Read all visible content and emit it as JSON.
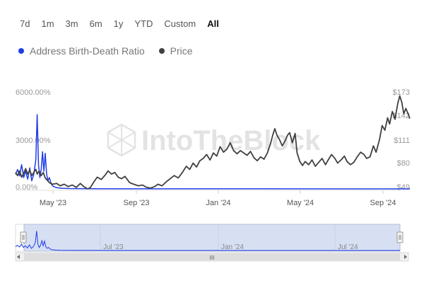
{
  "ranges": {
    "items": [
      "7d",
      "1m",
      "3m",
      "6m",
      "1y",
      "YTD",
      "Custom",
      "All"
    ],
    "active": "All"
  },
  "legend": {
    "items": [
      {
        "label": "Address Birth-Death Ratio",
        "color": "#1f3de6"
      },
      {
        "label": "Price",
        "color": "#404040"
      }
    ]
  },
  "watermark": "IntoTheBlock",
  "chart_data": {
    "type": "line",
    "x_ticks": [
      "May '23",
      "Sep '23",
      "Jan '24",
      "May '24",
      "Sep '24"
    ],
    "y_left_ticks": [
      "0.00%",
      "3000.00%",
      "6000.00%"
    ],
    "y_right_ticks": [
      "$49",
      "$80",
      "$111",
      "$142",
      "$173"
    ],
    "y_left_range": [
      0,
      6000
    ],
    "y_right_range": [
      49,
      173
    ],
    "x_range": [
      "2023-03-01",
      "2024-10-05"
    ],
    "grid": false,
    "legend_position": "top-left",
    "series": [
      {
        "name": "Address Birth-Death Ratio",
        "axis": "left",
        "color": "#1f3de6",
        "points": [
          [
            "2023-03-01",
            900
          ],
          [
            "2023-03-04",
            1200
          ],
          [
            "2023-03-07",
            800
          ],
          [
            "2023-03-10",
            1500
          ],
          [
            "2023-03-13",
            700
          ],
          [
            "2023-03-16",
            1100
          ],
          [
            "2023-03-19",
            600
          ],
          [
            "2023-03-22",
            1300
          ],
          [
            "2023-03-25",
            500
          ],
          [
            "2023-03-28",
            900
          ],
          [
            "2023-03-31",
            1800
          ],
          [
            "2023-04-02",
            4600
          ],
          [
            "2023-04-04",
            1500
          ],
          [
            "2023-04-06",
            700
          ],
          [
            "2023-04-08",
            1200
          ],
          [
            "2023-04-10",
            2300
          ],
          [
            "2023-04-12",
            1100
          ],
          [
            "2023-04-14",
            2200
          ],
          [
            "2023-04-16",
            900
          ],
          [
            "2023-04-18",
            500
          ],
          [
            "2023-04-20",
            700
          ],
          [
            "2023-04-23",
            300
          ],
          [
            "2023-04-26",
            150
          ],
          [
            "2023-05-01",
            80
          ],
          [
            "2023-05-08",
            40
          ],
          [
            "2023-05-20",
            20
          ],
          [
            "2023-06-15",
            10
          ],
          [
            "2023-08-01",
            5
          ],
          [
            "2024-01-01",
            3
          ],
          [
            "2024-10-05",
            2
          ]
        ]
      },
      {
        "name": "Price",
        "axis": "right",
        "color": "#404040",
        "points": [
          [
            "2023-03-01",
            70
          ],
          [
            "2023-03-04",
            66
          ],
          [
            "2023-03-07",
            72
          ],
          [
            "2023-03-10",
            64
          ],
          [
            "2023-03-13",
            69
          ],
          [
            "2023-03-16",
            75
          ],
          [
            "2023-03-19",
            68
          ],
          [
            "2023-03-22",
            73
          ],
          [
            "2023-03-25",
            66
          ],
          [
            "2023-03-28",
            70
          ],
          [
            "2023-03-31",
            74
          ],
          [
            "2023-04-02",
            68
          ],
          [
            "2023-04-05",
            72
          ],
          [
            "2023-04-08",
            66
          ],
          [
            "2023-04-11",
            70
          ],
          [
            "2023-04-14",
            63
          ],
          [
            "2023-04-17",
            60
          ],
          [
            "2023-04-20",
            57
          ],
          [
            "2023-04-25",
            55
          ],
          [
            "2023-05-01",
            56
          ],
          [
            "2023-05-06",
            53
          ],
          [
            "2023-05-12",
            55
          ],
          [
            "2023-05-18",
            52
          ],
          [
            "2023-05-24",
            54
          ],
          [
            "2023-05-30",
            51
          ],
          [
            "2023-06-05",
            56
          ],
          [
            "2023-06-10",
            52
          ],
          [
            "2023-06-16",
            49
          ],
          [
            "2023-06-20",
            51
          ],
          [
            "2023-06-25",
            58
          ],
          [
            "2023-06-30",
            64
          ],
          [
            "2023-07-06",
            61
          ],
          [
            "2023-07-12",
            67
          ],
          [
            "2023-07-16",
            72
          ],
          [
            "2023-07-21",
            68
          ],
          [
            "2023-07-26",
            70
          ],
          [
            "2023-07-31",
            64
          ],
          [
            "2023-08-05",
            62
          ],
          [
            "2023-08-10",
            65
          ],
          [
            "2023-08-17",
            57
          ],
          [
            "2023-08-23",
            55
          ],
          [
            "2023-08-30",
            53
          ],
          [
            "2023-09-05",
            54
          ],
          [
            "2023-09-11",
            51
          ],
          [
            "2023-09-17",
            50
          ],
          [
            "2023-09-23",
            52
          ],
          [
            "2023-09-28",
            55
          ],
          [
            "2023-10-04",
            53
          ],
          [
            "2023-10-10",
            58
          ],
          [
            "2023-10-16",
            62
          ],
          [
            "2023-10-22",
            66
          ],
          [
            "2023-10-28",
            63
          ],
          [
            "2023-11-03",
            70
          ],
          [
            "2023-11-09",
            78
          ],
          [
            "2023-11-14",
            74
          ],
          [
            "2023-11-19",
            82
          ],
          [
            "2023-11-24",
            77
          ],
          [
            "2023-11-29",
            85
          ],
          [
            "2023-12-04",
            88
          ],
          [
            "2023-12-09",
            93
          ],
          [
            "2023-12-14",
            86
          ],
          [
            "2023-12-19",
            95
          ],
          [
            "2023-12-24",
            91
          ],
          [
            "2023-12-29",
            103
          ],
          [
            "2024-01-03",
            96
          ],
          [
            "2024-01-08",
            100
          ],
          [
            "2024-01-13",
            108
          ],
          [
            "2024-01-18",
            98
          ],
          [
            "2024-01-23",
            94
          ],
          [
            "2024-01-28",
            98
          ],
          [
            "2024-02-02",
            95
          ],
          [
            "2024-02-07",
            92
          ],
          [
            "2024-02-12",
            97
          ],
          [
            "2024-02-17",
            89
          ],
          [
            "2024-02-22",
            85
          ],
          [
            "2024-02-27",
            90
          ],
          [
            "2024-03-03",
            87
          ],
          [
            "2024-03-08",
            95
          ],
          [
            "2024-03-13",
            108
          ],
          [
            "2024-03-16",
            118
          ],
          [
            "2024-03-19",
            126
          ],
          [
            "2024-03-22",
            118
          ],
          [
            "2024-03-26",
            112
          ],
          [
            "2024-03-30",
            104
          ],
          [
            "2024-04-03",
            110
          ],
          [
            "2024-04-07",
            118
          ],
          [
            "2024-04-10",
            121
          ],
          [
            "2024-04-14",
            108
          ],
          [
            "2024-04-18",
            120
          ],
          [
            "2024-04-21",
            95
          ],
          [
            "2024-04-25",
            84
          ],
          [
            "2024-04-29",
            79
          ],
          [
            "2024-05-03",
            84
          ],
          [
            "2024-05-08",
            80
          ],
          [
            "2024-05-13",
            86
          ],
          [
            "2024-05-18",
            78
          ],
          [
            "2024-05-23",
            83
          ],
          [
            "2024-05-28",
            88
          ],
          [
            "2024-06-02",
            80
          ],
          [
            "2024-06-06",
            86
          ],
          [
            "2024-06-11",
            93
          ],
          [
            "2024-06-16",
            88
          ],
          [
            "2024-06-20",
            82
          ],
          [
            "2024-06-25",
            86
          ],
          [
            "2024-06-30",
            91
          ],
          [
            "2024-07-04",
            84
          ],
          [
            "2024-07-09",
            80
          ],
          [
            "2024-07-14",
            83
          ],
          [
            "2024-07-19",
            90
          ],
          [
            "2024-07-24",
            96
          ],
          [
            "2024-07-29",
            93
          ],
          [
            "2024-08-02",
            88
          ],
          [
            "2024-08-07",
            90
          ],
          [
            "2024-08-12",
            104
          ],
          [
            "2024-08-16",
            96
          ],
          [
            "2024-08-21",
            112
          ],
          [
            "2024-08-25",
            130
          ],
          [
            "2024-08-29",
            124
          ],
          [
            "2024-09-02",
            140
          ],
          [
            "2024-09-05",
            132
          ],
          [
            "2024-09-09",
            148
          ],
          [
            "2024-09-13",
            138
          ],
          [
            "2024-09-17",
            158
          ],
          [
            "2024-09-20",
            168
          ],
          [
            "2024-09-23",
            160
          ],
          [
            "2024-09-26",
            145
          ],
          [
            "2024-09-29",
            152
          ],
          [
            "2024-10-02",
            146
          ],
          [
            "2024-10-05",
            139
          ]
        ]
      }
    ]
  },
  "navigator": {
    "labels": [
      "Jul '23",
      "Jan '24",
      "Jul '24"
    ],
    "scroll_glyph": "III"
  }
}
